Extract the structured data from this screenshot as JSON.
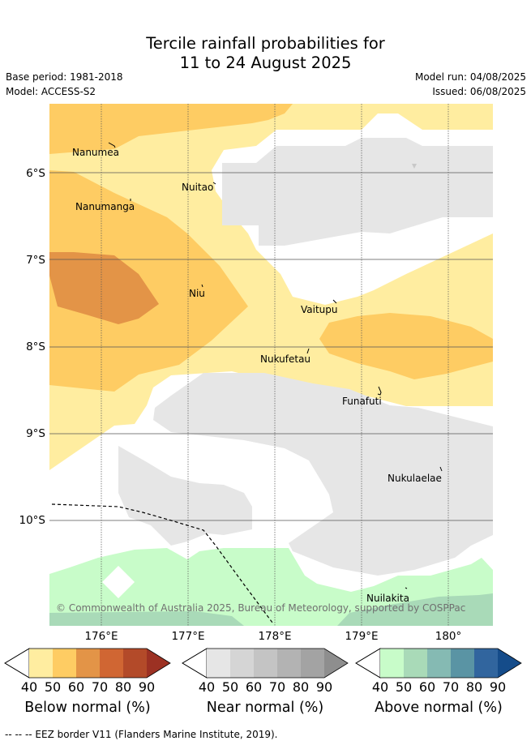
{
  "title": {
    "line1": "Tercile rainfall probabilities for",
    "line2": "11 to 24 August 2025"
  },
  "meta": {
    "base_period": "Base period: 1981-2018",
    "model": "Model: ACCESS-S2",
    "model_run": "Model run: 04/08/2025",
    "issued": "Issued: 06/08/2025"
  },
  "axes": {
    "lat_labels": [
      "6°S",
      "7°S",
      "8°S",
      "9°S",
      "10°S"
    ],
    "lon_labels": [
      "176°E",
      "177°E",
      "178°E",
      "179°E",
      "180°"
    ]
  },
  "places": [
    {
      "name": "Nanumea"
    },
    {
      "name": "Nuitao"
    },
    {
      "name": "Nanumanga"
    },
    {
      "name": "Niu"
    },
    {
      "name": "Vaitupu"
    },
    {
      "name": "Nukufetau"
    },
    {
      "name": "Funafuti"
    },
    {
      "name": "Nukulaelae"
    },
    {
      "name": "Nuilakita"
    }
  ],
  "copyright": "© Commonwealth of Australia 2025, Bureau of Meteorology, supported by COSPPac",
  "legend": {
    "ticks": [
      "40",
      "50",
      "60",
      "70",
      "80",
      "90"
    ],
    "below": {
      "title": "Below normal (%)",
      "colors": [
        "#ffeda0",
        "#fecc63",
        "#e39447",
        "#d06633",
        "#b34a29",
        "#9c3123"
      ]
    },
    "near": {
      "title": "Near normal (%)",
      "colors": [
        "#e6e6e6",
        "#d5d5d5",
        "#c4c4c4",
        "#b3b3b3",
        "#a3a3a3",
        "#8e8e8e"
      ]
    },
    "above": {
      "title": "Above normal (%)",
      "colors": [
        "#c8fcc9",
        "#a9dab8",
        "#85bab3",
        "#5a94a4",
        "#31659e",
        "#154c8a"
      ]
    }
  },
  "footer": "--  --  -- EEZ border V11 (Flanders Marine Institute, 2019)."
}
